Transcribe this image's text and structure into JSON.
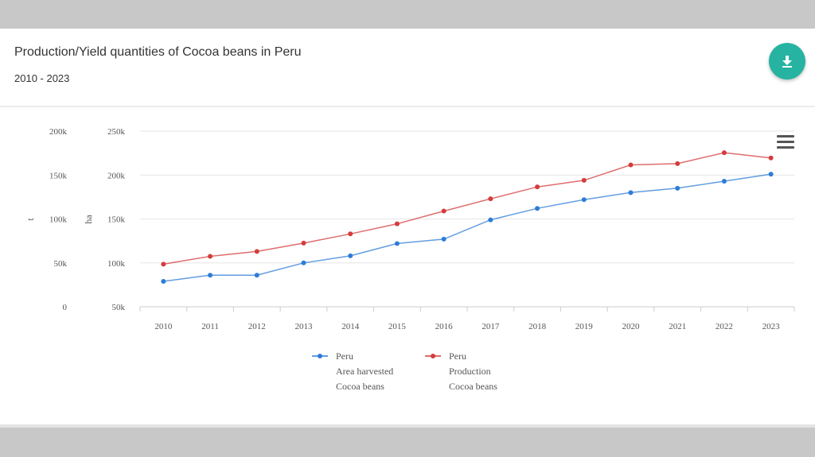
{
  "header": {
    "title": "Production/Yield quantities of Cocoa beans in Peru",
    "subtitle": "2010 - 2023"
  },
  "icons": {
    "download": "download-icon",
    "menu": "hamburger-menu-icon"
  },
  "colors": {
    "accent": "#26b3a2",
    "area_series": "#2e7cd6",
    "production_series": "#d43c3c"
  },
  "chart_data": {
    "type": "line",
    "title": "",
    "x": [
      2010,
      2011,
      2012,
      2013,
      2014,
      2015,
      2016,
      2017,
      2018,
      2019,
      2020,
      2021,
      2022,
      2023
    ],
    "left_axis": {
      "label": "t",
      "ticks": [
        "0",
        "50k",
        "100k",
        "150k",
        "200k"
      ],
      "range": [
        0,
        200000
      ]
    },
    "right_axis": {
      "label": "ha",
      "ticks": [
        "50k",
        "100k",
        "150k",
        "200k",
        "250k"
      ],
      "range": [
        50000,
        250000
      ]
    },
    "grid": true,
    "legend_position": "bottom-center",
    "series": [
      {
        "name": "Peru\nArea harvested\nCocoa beans",
        "legend_lines": [
          "Peru",
          "Area harvested",
          "Cocoa beans"
        ],
        "axis": "ha",
        "color": "#2e7cd6",
        "values": [
          79000,
          86000,
          86000,
          100000,
          108000,
          122000,
          127000,
          149000,
          162000,
          172000,
          180000,
          185000,
          193000,
          201000
        ]
      },
      {
        "name": "Peru\nProduction\nCocoa beans",
        "legend_lines": [
          "Peru",
          "Production",
          "Cocoa beans"
        ],
        "axis": "t",
        "color": "#d43c3c",
        "values": [
          48500,
          57500,
          63000,
          72500,
          83000,
          94500,
          109000,
          123000,
          136500,
          144000,
          161500,
          163000,
          175500,
          169500
        ]
      }
    ]
  }
}
